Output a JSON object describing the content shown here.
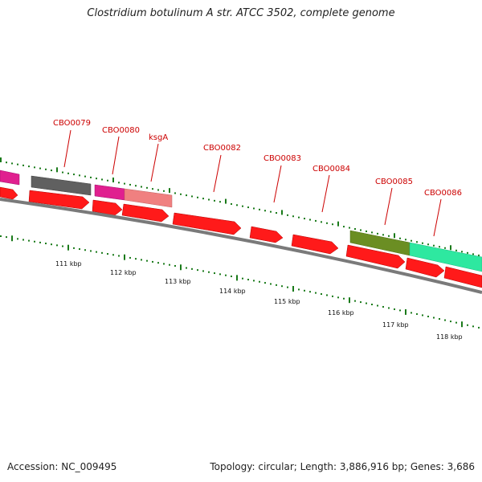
{
  "title": "Clostridium botulinum A str. ATCC 3502, complete genome",
  "footer": {
    "accession": "Accession: NC_009495",
    "summary": "Topology: circular; Length: 3,886,916 bp; Genes: 3,686"
  },
  "colors": {
    "cds_red": "#ff1a1a",
    "gene_label_red": "#cc0000",
    "tick_green": "#1a7a1a",
    "backbone_gray": "#7a7a7a",
    "magenta": "#e0208f",
    "dark_gray": "#606060",
    "salmon": "#f08080",
    "olive": "#6b8e23",
    "aqua_green": "#2ee8a0"
  },
  "gene_labels": [
    {
      "id": "cbo0079",
      "text": "CBO0079"
    },
    {
      "id": "cbo0080",
      "text": "CBO0080"
    },
    {
      "id": "ksga",
      "text": "ksgA"
    },
    {
      "id": "cbo0082",
      "text": "CBO0082"
    },
    {
      "id": "cbo0083",
      "text": "CBO0083"
    },
    {
      "id": "cbo0084",
      "text": "CBO0084"
    },
    {
      "id": "cbo0085",
      "text": "CBO0085"
    },
    {
      "id": "cbo0086",
      "text": "CBO0086"
    }
  ],
  "scale_labels": [
    "111 kbp",
    "112 kbp",
    "113 kbp",
    "114 kbp",
    "115 kbp",
    "116 kbp",
    "117 kbp",
    "118 kbp"
  ]
}
